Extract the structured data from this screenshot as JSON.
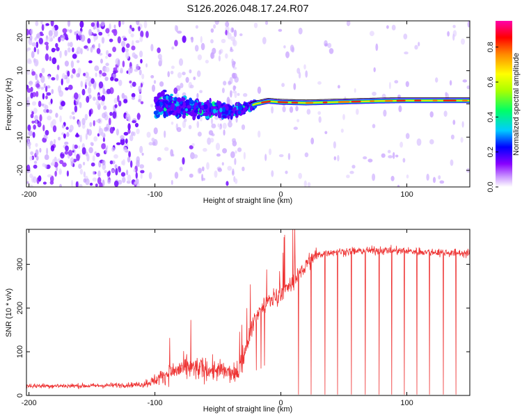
{
  "figure_title": "S126.2026.048.17.24.R07",
  "chart_data": [
    {
      "type": "heatmap",
      "name": "spectrogram",
      "title": "S126.2026.048.17.24.R07",
      "xlabel": "Height of straight line (km)",
      "ylabel": "Frequency (Hz)",
      "xlim": [
        -202,
        150
      ],
      "ylim": [
        -25,
        25
      ],
      "x_ticks": [
        -200,
        -100,
        0,
        100
      ],
      "y_ticks": [
        -20,
        -10,
        0,
        10,
        20
      ],
      "colorbar": {
        "label": "Normalized spectral amplitude",
        "range": [
          0.0,
          0.95
        ],
        "ticks": [
          0.0,
          0.2,
          0.4,
          0.6,
          0.8
        ],
        "tick_labels": [
          "0.0",
          "0.2",
          "0.4",
          "0.6",
          "0.8"
        ],
        "colors": [
          "#ffffff",
          "#cc99ff",
          "#8800ff",
          "#0000ff",
          "#00ccff",
          "#00ff66",
          "#aaff00",
          "#ffff00",
          "#ff8800",
          "#ff0000",
          "#ff00aa"
        ]
      },
      "signal_track": [
        {
          "x": -100,
          "y": 0.0
        },
        {
          "x": -80,
          "y": -0.8
        },
        {
          "x": -60,
          "y": -1.5
        },
        {
          "x": -40,
          "y": -2.0
        },
        {
          "x": -30,
          "y": -1.5
        },
        {
          "x": -20,
          "y": 0.0
        },
        {
          "x": -10,
          "y": 0.8
        },
        {
          "x": 0,
          "y": 0.5
        },
        {
          "x": 20,
          "y": 0.3
        },
        {
          "x": 50,
          "y": 0.6
        },
        {
          "x": 80,
          "y": 0.9
        },
        {
          "x": 100,
          "y": 1.0
        },
        {
          "x": 150,
          "y": 1.0
        }
      ]
    },
    {
      "type": "line",
      "name": "snr",
      "xlabel": "Height of straight line (km)",
      "ylabel": "SNR (10 * v/v)",
      "xlim": [
        -202,
        150
      ],
      "ylim": [
        0,
        380
      ],
      "x_ticks": [
        -200,
        -100,
        0,
        100
      ],
      "y_ticks": [
        0,
        100,
        200,
        300
      ],
      "color": "#ee3333",
      "series": [
        {
          "name": "SNR",
          "points": [
            {
              "x": -200,
              "y": 22
            },
            {
              "x": -150,
              "y": 22
            },
            {
              "x": -110,
              "y": 25
            },
            {
              "x": -100,
              "y": 35
            },
            {
              "x": -90,
              "y": 50
            },
            {
              "x": -80,
              "y": 60
            },
            {
              "x": -70,
              "y": 62
            },
            {
              "x": -60,
              "y": 60
            },
            {
              "x": -45,
              "y": 55
            },
            {
              "x": -35,
              "y": 45
            },
            {
              "x": -30,
              "y": 80
            },
            {
              "x": -25,
              "y": 140
            },
            {
              "x": -20,
              "y": 180
            },
            {
              "x": -15,
              "y": 200
            },
            {
              "x": -10,
              "y": 215
            },
            {
              "x": -5,
              "y": 225
            },
            {
              "x": 0,
              "y": 235
            },
            {
              "x": 5,
              "y": 245
            },
            {
              "x": 10,
              "y": 260
            },
            {
              "x": 15,
              "y": 280
            },
            {
              "x": 20,
              "y": 300
            },
            {
              "x": 25,
              "y": 315
            },
            {
              "x": 30,
              "y": 322
            },
            {
              "x": 40,
              "y": 328
            },
            {
              "x": 60,
              "y": 330
            },
            {
              "x": 80,
              "y": 332
            },
            {
              "x": 100,
              "y": 330
            },
            {
              "x": 120,
              "y": 328
            },
            {
              "x": 150,
              "y": 325
            }
          ],
          "dropouts_x": [
            14,
            24,
            35,
            45,
            56,
            67,
            78,
            88,
            98,
            108,
            118,
            129,
            139
          ]
        }
      ]
    }
  ]
}
